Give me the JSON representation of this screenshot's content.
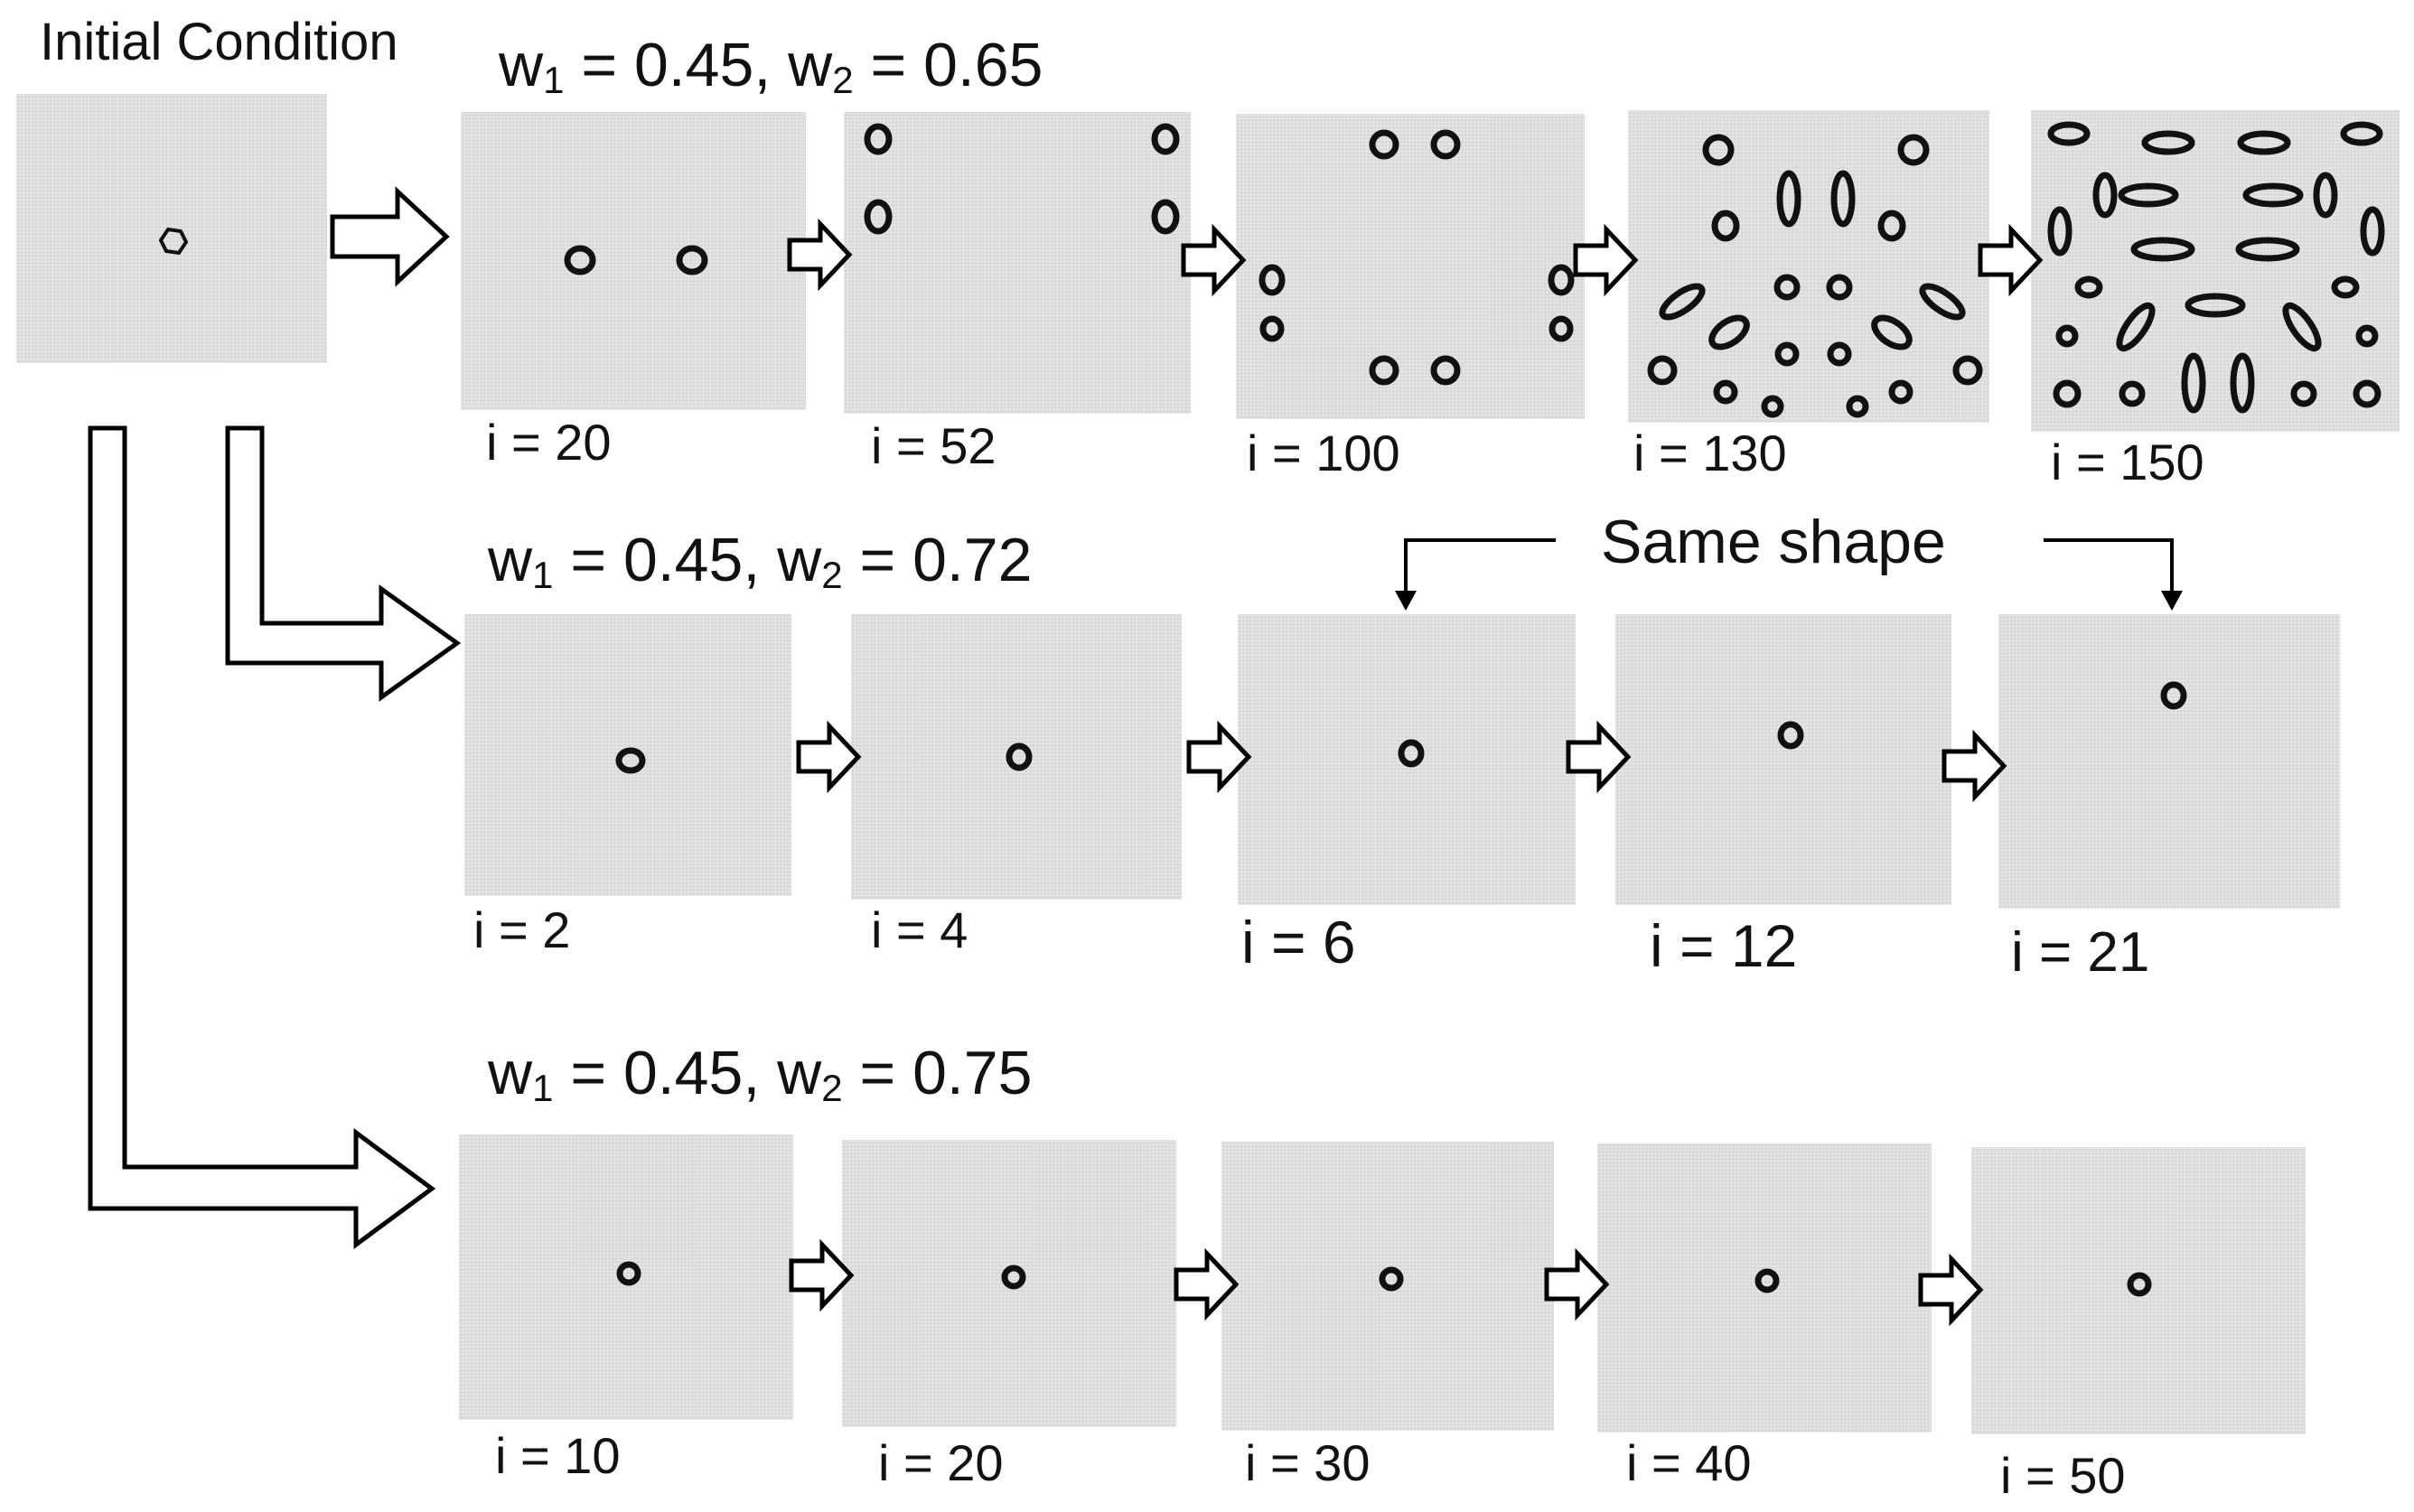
{
  "initial_condition": {
    "title": "Initial Condition"
  },
  "annotation": {
    "same_shape": "Same shape"
  },
  "rows": [
    {
      "w1_label": "w",
      "w1_sub": "1",
      "w1_value": " = 0.45, ",
      "w2_label": "w",
      "w2_sub": "2",
      "w2_value": " = 0.65",
      "steps": [
        "i = 20",
        "i = 52",
        "i = 100",
        "i = 130",
        "i = 150"
      ]
    },
    {
      "w1_label": "w",
      "w1_sub": "1",
      "w1_value": " = 0.45, ",
      "w2_label": "w",
      "w2_sub": "2",
      "w2_value": " = 0.72",
      "steps": [
        "i = 2",
        "i = 4",
        "i = 6",
        "i = 12",
        "i = 21"
      ]
    },
    {
      "w1_label": "w",
      "w1_sub": "1",
      "w1_value": " = 0.45, ",
      "w2_label": "w",
      "w2_sub": "2",
      "w2_value": " = 0.75",
      "steps": [
        "i = 10",
        "i = 20",
        "i = 30",
        "i = 40",
        "i = 50"
      ]
    }
  ]
}
